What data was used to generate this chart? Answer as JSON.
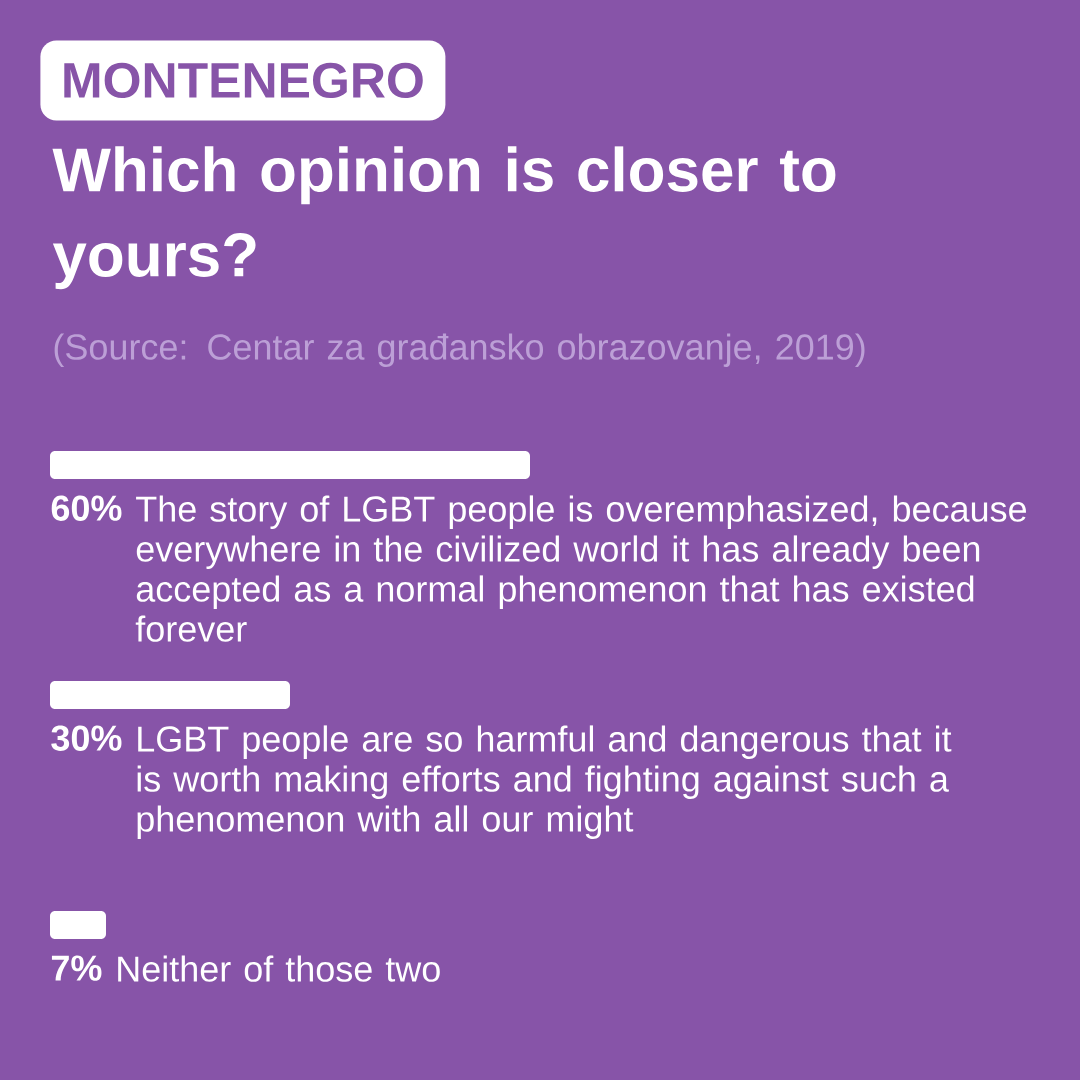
{
  "chart_data": {
    "type": "bar",
    "orientation": "horizontal",
    "subtitle": "MONTENEGRO",
    "title": "Which opinion is closer to yours?",
    "annotations": [
      "(Source: Centar za građansko obrazovanje, 2019)"
    ],
    "categories": [
      "The story of LGBT people is overemphasized, because everywhere in the civilized world it has already been accepted as a normal phenomenon that has existed forever",
      "LGBT people are so harmful and dangerous that it is worth making efforts and fighting against such a phenomenon with all our might",
      "Neither of those two"
    ],
    "values": [
      60,
      30,
      7
    ],
    "value_labels": [
      "60%",
      "30%",
      "7%"
    ],
    "color": "#ffffff"
  }
}
